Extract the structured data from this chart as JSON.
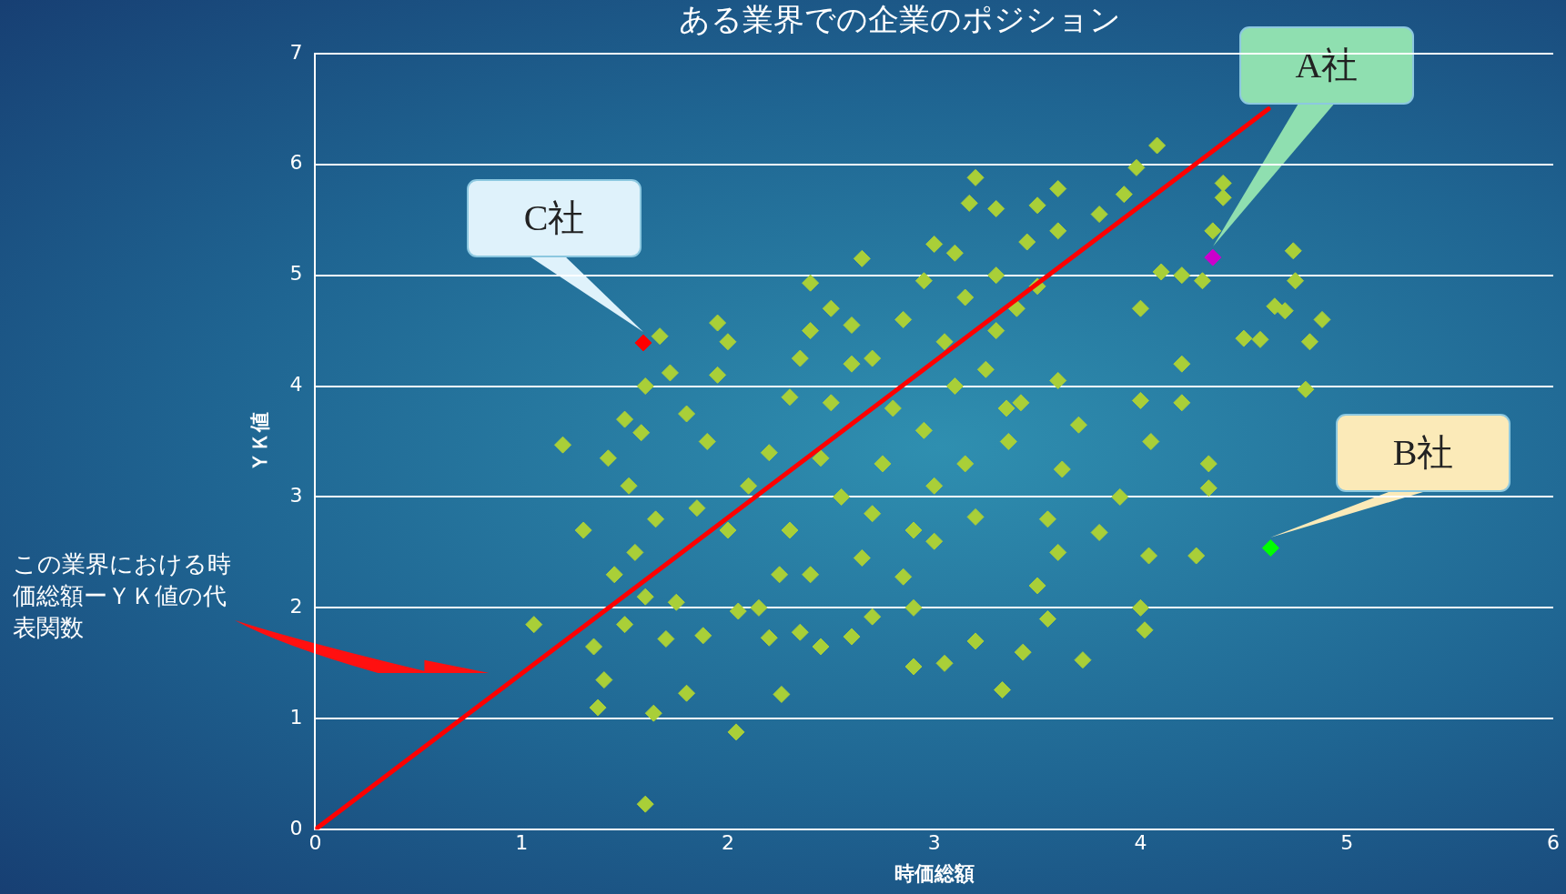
{
  "chart_data": {
    "type": "scatter",
    "title": "ある業界での企業のポジション",
    "xlabel": "時価総額",
    "ylabel": "ＹＫ値",
    "xlim": [
      0,
      6
    ],
    "xticks": [
      0,
      1,
      2,
      3,
      4,
      5,
      6
    ],
    "ylim": [
      0,
      7
    ],
    "yticks": [
      0,
      1,
      2,
      3,
      4,
      5,
      6,
      7
    ],
    "grid": "y",
    "legend": false,
    "marker": "diamond",
    "series": [
      {
        "color": "#a9cf38",
        "x": [
          1.06,
          1.2,
          1.3,
          1.37,
          1.4,
          1.6,
          1.64,
          1.8,
          2.04,
          2.26,
          3.33,
          3.05,
          2.9,
          3.2,
          3.43,
          3.72,
          4.02,
          4.0,
          4.27,
          4.04,
          3.9,
          4.33,
          4.33,
          4.05,
          4.2,
          4.0,
          4.2,
          4.8,
          4.82,
          4.88,
          4.58,
          4.5,
          4.7,
          4.65,
          4.75,
          4.74,
          4.3,
          4.1,
          4.2,
          4.35,
          4.4,
          4.4,
          3.98,
          4.08,
          3.92,
          3.6,
          3.5,
          3.2,
          3.17,
          3.3,
          3.3,
          4.0,
          3.6,
          3.7,
          3.8,
          3.55,
          3.5,
          3.55,
          3.6,
          3.62,
          3.42,
          3.36,
          3.2,
          3.0,
          2.9,
          2.85,
          2.7,
          2.6,
          2.45,
          2.35,
          2.2,
          2.15,
          2.25,
          2.05,
          1.88,
          1.75,
          1.7,
          1.6,
          1.5,
          1.45,
          1.35,
          1.55,
          1.65,
          1.52,
          1.42,
          1.58,
          1.5,
          1.6,
          1.67,
          1.72,
          1.8,
          1.9,
          1.95,
          1.95,
          2.0,
          2.1,
          2.0,
          1.85,
          2.2,
          2.3,
          2.35,
          2.4,
          2.4,
          2.5,
          2.6,
          2.6,
          2.5,
          2.45,
          2.55,
          2.3,
          2.4,
          2.65,
          2.7,
          2.75,
          2.8,
          2.7,
          2.85,
          2.95,
          3.0,
          3.1,
          3.15,
          3.05,
          3.1,
          2.95,
          3.0,
          3.15,
          2.65,
          3.3,
          3.45,
          3.6,
          3.8,
          3.4,
          3.5,
          3.25,
          3.35,
          2.9
        ],
        "values": [
          1.85,
          3.47,
          2.7,
          1.1,
          1.35,
          0.23,
          1.05,
          1.23,
          0.88,
          1.22,
          1.26,
          1.5,
          1.47,
          1.7,
          1.6,
          1.53,
          1.8,
          2.0,
          2.47,
          2.47,
          3.0,
          3.08,
          3.3,
          3.5,
          3.85,
          3.87,
          4.2,
          3.97,
          4.4,
          4.6,
          4.42,
          4.43,
          4.68,
          4.72,
          4.95,
          5.22,
          4.95,
          5.03,
          5.0,
          5.4,
          5.83,
          5.7,
          5.97,
          6.17,
          5.73,
          5.78,
          5.63,
          5.88,
          5.65,
          5.6,
          5.0,
          4.7,
          4.05,
          3.65,
          2.68,
          2.8,
          2.2,
          1.9,
          2.5,
          3.25,
          3.85,
          3.5,
          2.82,
          2.6,
          2.0,
          2.28,
          1.92,
          1.74,
          1.65,
          1.78,
          1.73,
          2.0,
          2.3,
          1.97,
          1.75,
          2.05,
          1.72,
          2.1,
          1.85,
          2.3,
          1.65,
          2.5,
          2.8,
          3.1,
          3.35,
          3.58,
          3.7,
          4.0,
          4.45,
          4.12,
          3.75,
          3.5,
          4.1,
          4.57,
          4.4,
          3.1,
          2.7,
          2.9,
          3.4,
          3.9,
          4.25,
          4.5,
          4.93,
          4.7,
          4.55,
          4.2,
          3.85,
          3.35,
          3.0,
          2.7,
          2.3,
          2.45,
          2.85,
          3.3,
          3.8,
          4.25,
          4.6,
          4.95,
          5.28,
          5.2,
          4.8,
          4.4,
          4.0,
          3.6,
          3.1,
          3.3,
          5.15,
          4.5,
          5.3,
          5.4,
          5.55,
          4.7,
          4.9,
          4.15,
          3.8,
          2.7
        ]
      },
      {
        "color": "#cc00cc",
        "x": [
          4.35
        ],
        "values": [
          5.16
        ]
      },
      {
        "color": "#00ff00",
        "x": [
          4.63
        ],
        "values": [
          2.54
        ]
      },
      {
        "color": "#ff0000",
        "x": [
          1.59
        ],
        "values": [
          4.39
        ]
      },
      {
        "type": "line",
        "color": "#ff0000",
        "marker": "none",
        "x": [
          0,
          4.62
        ],
        "values": [
          0,
          6.5
        ]
      }
    ],
    "annotations": [
      "A社",
      "B社",
      "C社",
      "この業界における時価総額ーＹＫ値の代表関数"
    ]
  }
}
